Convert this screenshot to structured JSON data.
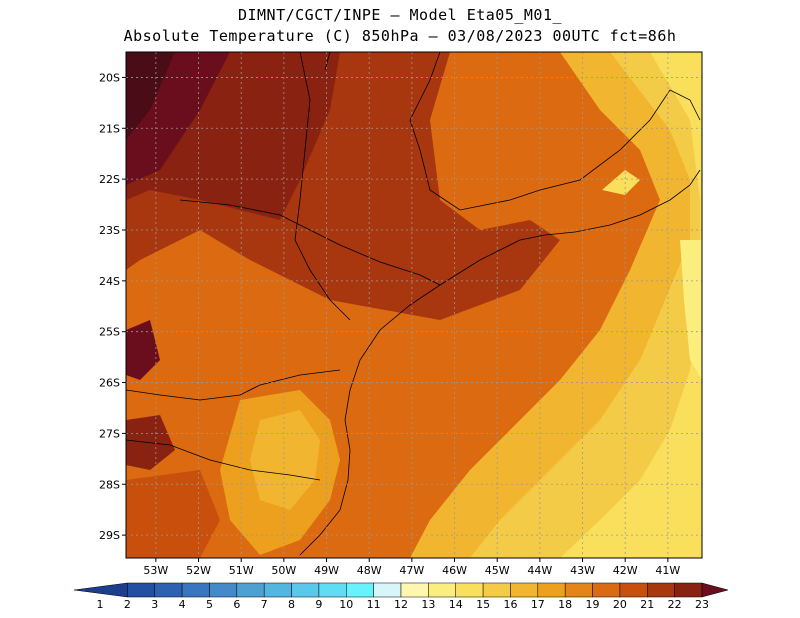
{
  "title": {
    "line1": "DIMNT/CGCT/INPE –  Model Eta05_M01_",
    "line2": "Absolute Temperature (C) 850hPa –  03/08/2023 00UTC fct=86h"
  },
  "map": {
    "lat_labels": [
      "20S",
      "21S",
      "22S",
      "23S",
      "24S",
      "25S",
      "26S",
      "27S",
      "28S",
      "29S"
    ],
    "lon_labels": [
      "53W",
      "52W",
      "51W",
      "50W",
      "49W",
      "48W",
      "47W",
      "46W",
      "45W",
      "44W",
      "43W",
      "42W",
      "41W"
    ],
    "lat_range": [
      -19.5,
      -29.45
    ],
    "lon_range": [
      -53.7,
      -40.2
    ],
    "grid": "dotted"
  },
  "colorbar": {
    "labels": [
      "1",
      "2",
      "3",
      "4",
      "5",
      "6",
      "7",
      "8",
      "9",
      "10",
      "11",
      "12",
      "13",
      "14",
      "15",
      "16",
      "17",
      "18",
      "19",
      "20",
      "21",
      "22",
      "23"
    ],
    "colors": [
      "#1d3d8e",
      "#2350a0",
      "#2e62b0",
      "#3a76bf",
      "#4489c8",
      "#4ea0d3",
      "#52b6e0",
      "#58c9ea",
      "#5fdef3",
      "#66f3fc",
      "#d6f6fa",
      "#fff7b0",
      "#fcee7c",
      "#f9df5c",
      "#f4cb46",
      "#f1b52f",
      "#eda01e",
      "#e58418",
      "#dc6a10",
      "#c9500c",
      "#a83710",
      "#8a2212",
      "#6a0e1d"
    ]
  }
}
